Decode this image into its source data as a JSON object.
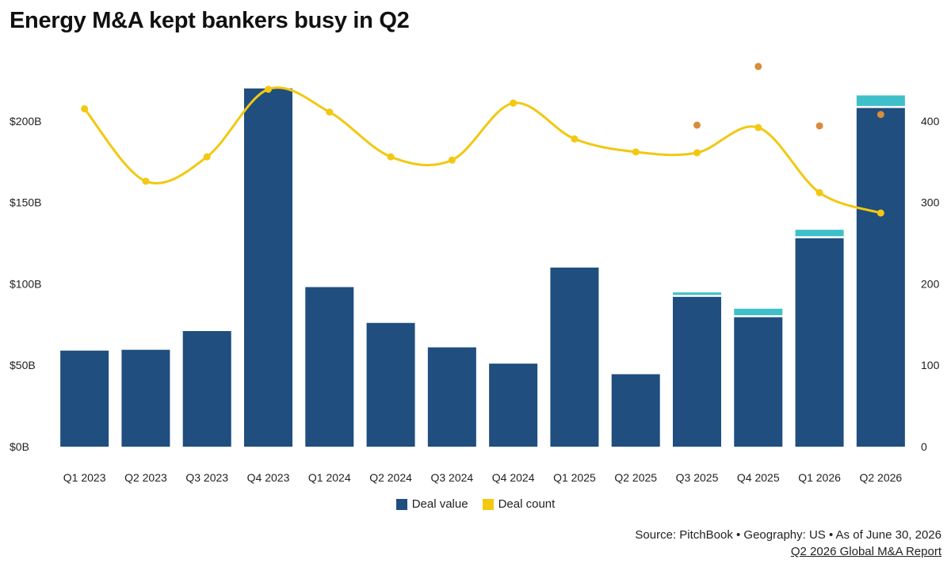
{
  "title": "Energy M&A kept bankers busy in Q2",
  "legend": {
    "deal_value": "Deal value",
    "deal_count": "Deal count"
  },
  "source": "Source: PitchBook • Geography: US • As of June 30, 2026",
  "report_link": "Q2 2026 Global M&A Report",
  "colors": {
    "bar": "#1f4e7f",
    "bar_top": "#3fbfc9",
    "line": "#f2c811",
    "dot": "#d98c3a"
  },
  "chart_data": {
    "type": "bar",
    "categories": [
      "Q1 2023",
      "Q2 2023",
      "Q3 2023",
      "Q4 2023",
      "Q1 2024",
      "Q2 2024",
      "Q3 2024",
      "Q4 2024",
      "Q1 2025",
      "Q2 2025",
      "Q3 2025",
      "Q4 2025",
      "Q1 2026",
      "Q2 2026"
    ],
    "series": [
      {
        "name": "Deal value",
        "type": "bar",
        "axis": "left",
        "values": [
          59,
          59.5,
          71,
          220,
          98,
          76,
          61,
          51,
          110,
          44.5,
          92,
          79.5,
          128,
          208
        ]
      },
      {
        "type": "bar-stacked-top",
        "axis": "left",
        "values": [
          null,
          null,
          null,
          null,
          null,
          null,
          null,
          null,
          null,
          null,
          1.5,
          4,
          4,
          6.5
        ]
      },
      {
        "name": "Deal count",
        "type": "line",
        "axis": "right",
        "values": [
          415,
          326,
          356,
          439,
          411,
          356,
          352,
          422,
          378,
          362,
          361,
          392,
          312,
          287
        ]
      },
      {
        "type": "scatter",
        "axis": "right",
        "values": [
          null,
          null,
          null,
          null,
          null,
          null,
          null,
          null,
          null,
          null,
          395,
          467,
          394,
          408
        ]
      }
    ],
    "ylim_left": [
      0,
      230
    ],
    "yticks_left": [
      "$0B",
      "$50B",
      "$100B",
      "$150B",
      "$200B"
    ],
    "yticks_left_values": [
      0,
      50,
      100,
      150,
      200
    ],
    "ylim_right": [
      0,
      460
    ],
    "yticks_right": [
      "0",
      "100",
      "200",
      "300",
      "400"
    ],
    "yticks_right_values": [
      0,
      100,
      200,
      300,
      400
    ],
    "grid": false,
    "legend_position": "bottom-center"
  }
}
